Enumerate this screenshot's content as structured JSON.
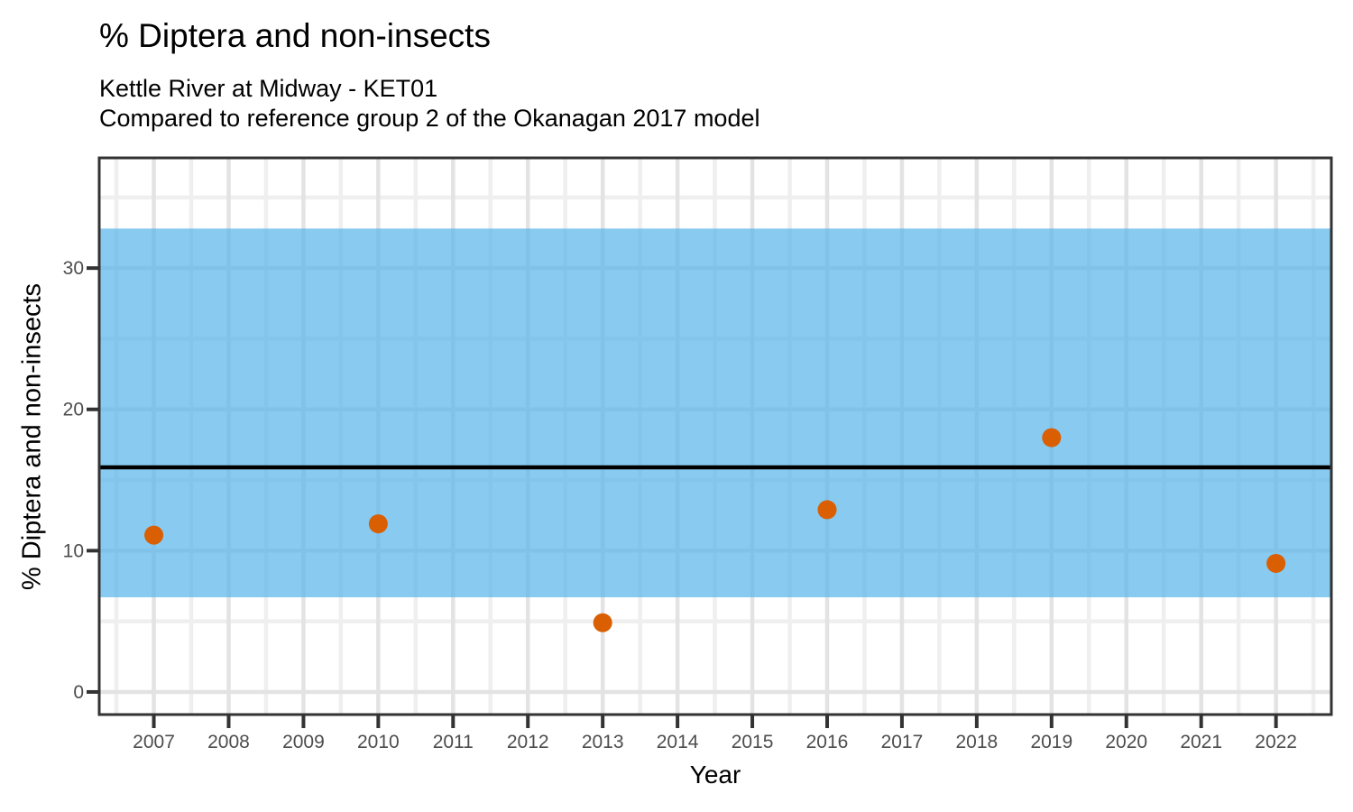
{
  "title": "% Diptera and non-insects",
  "subtitle1": "Kettle River at Midway - KET01",
  "subtitle2": "Compared to reference group 2 of the Okanagan 2017 model",
  "chart_data": {
    "type": "scatter",
    "title": "% Diptera and non-insects",
    "subtitle": [
      "Kettle River at Midway - KET01",
      "Compared to reference group 2 of the Okanagan 2017 model"
    ],
    "xlabel": "Year",
    "ylabel": "% Diptera and non-insects",
    "series": [
      {
        "name": "% Diptera and non-insects",
        "x": [
          2007,
          2010,
          2013,
          2016,
          2019,
          2022
        ],
        "y": [
          11.1,
          11.9,
          4.9,
          12.9,
          18.0,
          9.1
        ]
      }
    ],
    "reference_band": {
      "label": "reference group 2 range",
      "ymin": 6.7,
      "ymax": 32.8
    },
    "reference_line": {
      "label": "reference median",
      "y": 15.9
    },
    "x_ticks": [
      2007,
      2008,
      2009,
      2010,
      2011,
      2012,
      2013,
      2014,
      2015,
      2016,
      2017,
      2018,
      2019,
      2020,
      2021,
      2022
    ],
    "y_ticks": [
      0,
      10,
      20,
      30
    ],
    "y_minor_grid": [
      5,
      15,
      25,
      35
    ],
    "x_minor_grid_offset": 0.5,
    "xlim": [
      2006.27,
      2022.74
    ],
    "ylim": [
      -1.6,
      37.8
    ],
    "grid": "major+minor",
    "legend": "none",
    "colors": {
      "point": "#D95F02",
      "band": "#56B4E9",
      "band_opacity": 0.7,
      "median_line": "#000000",
      "grid_major": "#E3E3E3",
      "grid_minor": "#EFEFEF",
      "axis_text": "#4D4D4D",
      "panel_border": "#333333",
      "tick_mark": "#333333"
    }
  }
}
